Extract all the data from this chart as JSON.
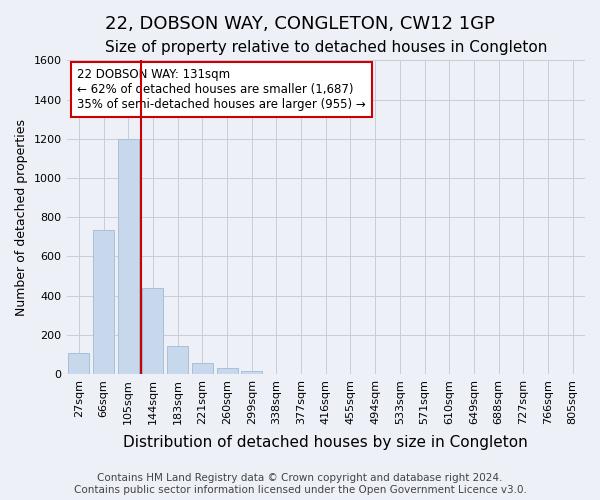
{
  "title": "22, DOBSON WAY, CONGLETON, CW12 1GP",
  "subtitle": "Size of property relative to detached houses in Congleton",
  "xlabel": "Distribution of detached houses by size in Congleton",
  "ylabel": "Number of detached properties",
  "footer_line1": "Contains HM Land Registry data © Crown copyright and database right 2024.",
  "footer_line2": "Contains public sector information licensed under the Open Government Licence v3.0.",
  "bar_labels": [
    "27sqm",
    "66sqm",
    "105sqm",
    "144sqm",
    "183sqm",
    "221sqm",
    "260sqm",
    "299sqm",
    "338sqm",
    "377sqm",
    "416sqm",
    "455sqm",
    "494sqm",
    "533sqm",
    "571sqm",
    "610sqm",
    "649sqm",
    "688sqm",
    "727sqm",
    "766sqm",
    "805sqm"
  ],
  "bar_values": [
    107,
    733,
    1200,
    437,
    143,
    57,
    32,
    17,
    0,
    0,
    0,
    0,
    0,
    0,
    0,
    0,
    0,
    0,
    0,
    0,
    0
  ],
  "bar_color": "#c8d8ec",
  "bar_edgecolor": "#a8c0d8",
  "grid_color": "#c8ccd8",
  "background_color": "#eef0f8",
  "ylim": [
    0,
    1600
  ],
  "yticks": [
    0,
    200,
    400,
    600,
    800,
    1000,
    1200,
    1400,
    1600
  ],
  "vline_color": "#cc0000",
  "vline_pos": 2.5,
  "annotation_text": "22 DOBSON WAY: 131sqm\n← 62% of detached houses are smaller (1,687)\n35% of semi-detached houses are larger (955) →",
  "annotation_box_color": "#ffffff",
  "annotation_box_edgecolor": "#cc0000",
  "annotation_fontsize": 8.5,
  "title_fontsize": 13,
  "subtitle_fontsize": 11,
  "xlabel_fontsize": 11,
  "ylabel_fontsize": 9,
  "tick_fontsize": 8,
  "footer_fontsize": 7.5
}
